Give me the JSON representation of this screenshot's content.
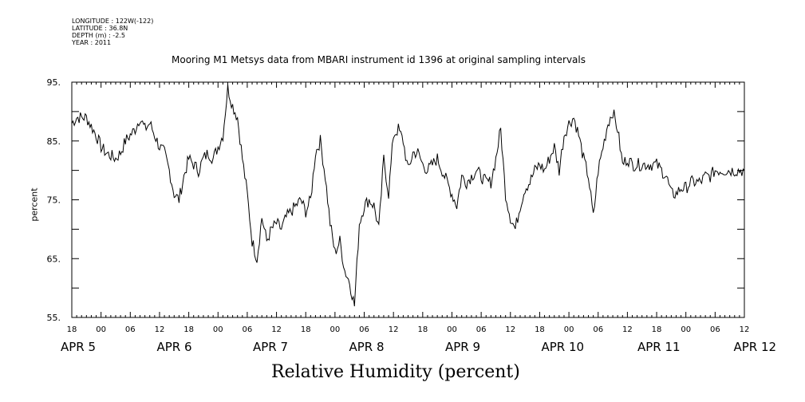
{
  "meta": {
    "longitude": "LONGITUDE : 122W(-122)",
    "latitude": "LATITUDE : 36.8N",
    "depth": "DEPTH (m) : -2.5",
    "year": "YEAR : 2011"
  },
  "chart_data": {
    "type": "line",
    "title": "Mooring M1 Metsys data from MBARI instrument id 1396 at original sampling intervals",
    "xlabel": "Relative Humidity (percent)",
    "ylabel": "percent",
    "ylim": [
      55,
      95
    ],
    "yticks": [
      "95.",
      "85.",
      "75.",
      "65.",
      "55."
    ],
    "xlim_hours": [
      90,
      228
    ],
    "hour_ticks": [
      "18",
      "00",
      "06",
      "12",
      "18",
      "00",
      "06",
      "12",
      "18",
      "00",
      "06",
      "12",
      "18",
      "00",
      "06",
      "12",
      "18",
      "00",
      "06",
      "12",
      "18",
      "00",
      "06",
      "12",
      "18",
      "00",
      "06",
      "12",
      "18",
      "00",
      "06",
      "12"
    ],
    "day_labels": [
      "APR  5",
      "APR  6",
      "APR  7",
      "APR  8",
      "APR  9",
      "APR  10",
      "APR  11",
      "APR  12"
    ],
    "series": [
      {
        "x": [
          90,
          91,
          93,
          95,
          96,
          97,
          99,
          100,
          101,
          102,
          103,
          104,
          105,
          106,
          107,
          108,
          109,
          110,
          111,
          112,
          113,
          114,
          115,
          116,
          117,
          118,
          119,
          120,
          121,
          122,
          123,
          124,
          125,
          126,
          127,
          128,
          129,
          130,
          131,
          132,
          133,
          134,
          135,
          136,
          137,
          138,
          139,
          140,
          141,
          142,
          143,
          144,
          145,
          146,
          147,
          148,
          149,
          150,
          151,
          152,
          153,
          154,
          155,
          156,
          157,
          158,
          159,
          160,
          161,
          162,
          163,
          164,
          165,
          166,
          167,
          168,
          169,
          170,
          171,
          172,
          173,
          174,
          175,
          176,
          177,
          178,
          179,
          180,
          181,
          182,
          183,
          184,
          185,
          186,
          187,
          188,
          189,
          190,
          191,
          192,
          193,
          194,
          195,
          196,
          197,
          198,
          199,
          200,
          201,
          202,
          203,
          204,
          205,
          206,
          207,
          208,
          209,
          210,
          211,
          212,
          213,
          214,
          215,
          216,
          217,
          218,
          219,
          220,
          221,
          222,
          223,
          224,
          225,
          226,
          227,
          228
        ],
        "y": [
          88,
          89,
          89,
          86,
          84,
          83,
          82,
          83,
          85,
          86,
          87,
          89,
          87,
          88,
          86,
          84,
          83,
          80,
          76,
          75,
          79,
          82,
          81,
          80,
          82,
          83,
          82,
          84,
          86,
          94,
          91,
          89,
          82,
          76,
          68,
          65,
          72,
          68,
          70,
          71,
          70,
          72,
          73,
          74,
          75,
          73,
          75,
          83,
          85,
          79,
          71,
          66,
          68,
          63,
          61,
          57,
          71,
          74,
          75,
          74,
          70,
          82,
          76,
          86,
          87,
          85,
          80,
          83,
          83,
          81,
          80,
          81,
          82,
          80,
          78,
          76,
          74,
          79,
          78,
          79,
          80,
          79,
          78,
          78,
          82,
          87,
          76,
          72,
          70,
          74,
          77,
          78,
          80,
          81,
          80,
          82,
          84,
          80,
          86,
          88,
          89,
          86,
          82,
          79,
          72,
          80,
          84,
          88,
          90,
          87,
          81,
          82,
          81,
          81,
          81,
          81,
          81,
          81,
          80,
          79,
          76,
          76,
          77,
          77,
          78,
          78,
          78,
          79,
          79,
          80,
          80,
          80,
          80,
          80,
          80,
          80
        ]
      }
    ],
    "grid": false,
    "line_color": "#000000"
  }
}
